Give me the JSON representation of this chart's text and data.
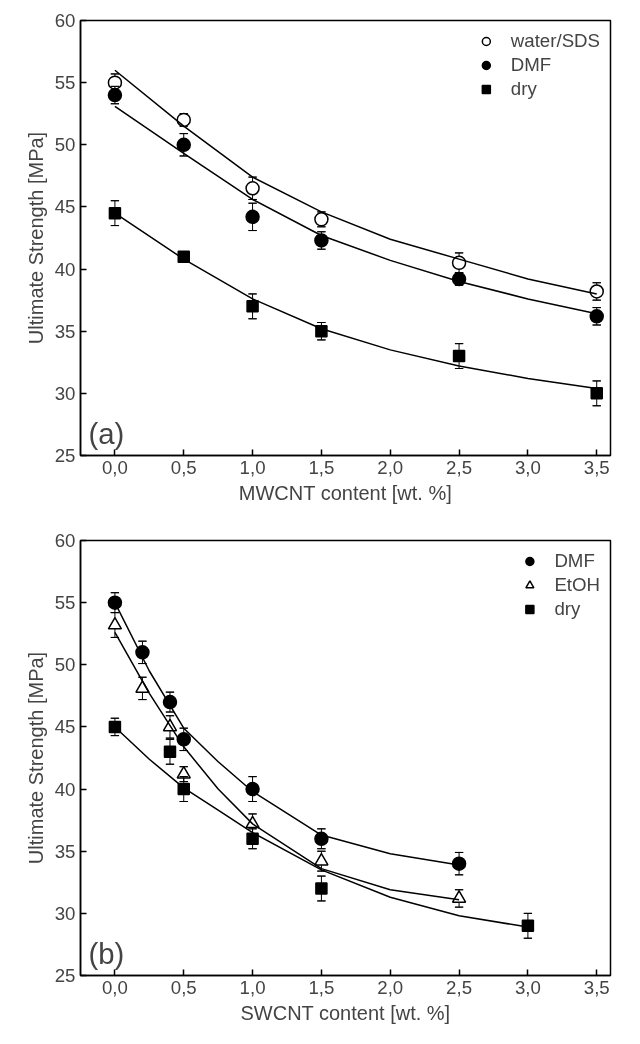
{
  "chart_data": [
    {
      "type": "scatter",
      "xlabel": "MWCNT content [wt. %]",
      "ylabel": "Ultimate Strength [MPa]",
      "xlim": [
        -0.25,
        3.6
      ],
      "ylim": [
        25,
        60
      ],
      "xticks": [
        {
          "value": 0,
          "label": "0,0"
        },
        {
          "value": 0.5,
          "label": "0,5"
        },
        {
          "value": 1,
          "label": "1,0"
        },
        {
          "value": 1.5,
          "label": "1,5"
        },
        {
          "value": 2,
          "label": "2,0"
        },
        {
          "value": 2.5,
          "label": "2,5"
        },
        {
          "value": 3,
          "label": "3,0"
        },
        {
          "value": 3.5,
          "label": "3,5"
        }
      ],
      "yticks": [
        25,
        30,
        35,
        40,
        45,
        50,
        55,
        60
      ],
      "legend": "top right",
      "grid": false,
      "annotations": [
        "(a)"
      ],
      "series": [
        {
          "name": "water/SDS",
          "color": "#ffffff",
          "marker": "circle",
          "x": [
            0,
            0.5,
            1,
            1.5,
            2.5,
            3.5
          ],
          "values": [
            55,
            52,
            46.5,
            44,
            40.5,
            38.2
          ],
          "errors": [
            0.7,
            0.5,
            0.9,
            0.6,
            0.8,
            0.7
          ]
        },
        {
          "name": "DMF",
          "color": "#000000",
          "marker": "circle",
          "x": [
            0,
            0.5,
            1,
            1.5,
            2.5,
            3.5
          ],
          "values": [
            54,
            50,
            44.2,
            42.3,
            39.2,
            36.2
          ],
          "errors": [
            0.7,
            0.9,
            1.1,
            0.7,
            0.5,
            0.7
          ]
        },
        {
          "name": "dry",
          "color": "#000000",
          "marker": "square",
          "x": [
            0,
            0.5,
            1,
            1.5,
            2.5,
            3.5
          ],
          "values": [
            44.5,
            41,
            37,
            35,
            33,
            30
          ],
          "errors": [
            1,
            0.3,
            1,
            0.7,
            1,
            1
          ]
        },
        {
          "type": "line",
          "color": "#000000",
          "x": [
            0,
            0.5,
            1,
            1.5,
            2,
            2.5,
            3,
            3.5
          ],
          "values": [
            56.0,
            51.5,
            47.4,
            44.6,
            42.4,
            40.8,
            39.2,
            38.0
          ]
        },
        {
          "type": "line",
          "color": "#000000",
          "x": [
            0,
            0.5,
            1,
            1.5,
            2,
            2.5,
            3,
            3.5
          ],
          "values": [
            53.1,
            49.3,
            45.6,
            42.7,
            40.7,
            39.0,
            37.6,
            36.4
          ]
        },
        {
          "type": "line",
          "color": "#000000",
          "x": [
            0,
            0.5,
            1,
            1.5,
            2,
            2.5,
            3,
            3.5
          ],
          "values": [
            44.5,
            40.8,
            37.6,
            35.2,
            33.5,
            32.2,
            31.2,
            30.4
          ]
        }
      ]
    },
    {
      "type": "scatter",
      "xlabel": "SWCNT content [wt. %]",
      "ylabel": "Ultimate Strength [MPa]",
      "xlim": [
        -0.25,
        3.6
      ],
      "ylim": [
        25,
        60
      ],
      "xticks": [
        {
          "value": 0,
          "label": "0,0"
        },
        {
          "value": 0.5,
          "label": "0,5"
        },
        {
          "value": 1,
          "label": "1,0"
        },
        {
          "value": 1.5,
          "label": "1,5"
        },
        {
          "value": 2,
          "label": "2,0"
        },
        {
          "value": 2.5,
          "label": "2,5"
        },
        {
          "value": 3,
          "label": "3,0"
        },
        {
          "value": 3.5,
          "label": "3,5"
        }
      ],
      "yticks": [
        25,
        30,
        35,
        40,
        45,
        50,
        55,
        60
      ],
      "legend": "top right",
      "grid": false,
      "annotations": [
        "(b)"
      ],
      "series": [
        {
          "name": "DMF",
          "color": "#000000",
          "marker": "circle",
          "x": [
            0,
            0.2,
            0.4,
            0.5,
            1,
            1.5,
            2.5
          ],
          "values": [
            55,
            51,
            47,
            44,
            40,
            36,
            34
          ],
          "errors": [
            0.8,
            0.9,
            0.8,
            0.9,
            1,
            0.8,
            0.9
          ]
        },
        {
          "name": "EtOH",
          "color": "#ffffff",
          "marker": "triangle",
          "x": [
            0,
            0.2,
            0.4,
            0.5,
            1,
            1.5,
            2.5
          ],
          "values": [
            53.2,
            48.1,
            45,
            41.2,
            37.2,
            34.2,
            31.2
          ],
          "errors": [
            1,
            0.9,
            0.9,
            0.6,
            0.8,
            0.8,
            0.7
          ]
        },
        {
          "name": "dry",
          "color": "#000000",
          "marker": "square",
          "x": [
            0,
            0.4,
            0.5,
            1,
            1.5,
            3
          ],
          "values": [
            45,
            43,
            40,
            36,
            32,
            29
          ],
          "errors": [
            0.7,
            1,
            1,
            0.8,
            1,
            1
          ]
        },
        {
          "type": "line",
          "color": "#000000",
          "x": [
            0,
            0.25,
            0.5,
            0.75,
            1,
            1.5,
            2,
            2.5
          ],
          "values": [
            55,
            49.5,
            44.9,
            42.2,
            39.8,
            36.3,
            34.8,
            33.9
          ]
        },
        {
          "type": "line",
          "color": "#000000",
          "x": [
            0,
            0.25,
            0.5,
            0.75,
            1,
            1.5,
            2,
            2.5
          ],
          "values": [
            52.6,
            47.7,
            43.4,
            40.0,
            37.2,
            33.6,
            31.9,
            31.1
          ]
        },
        {
          "type": "line",
          "color": "#000000",
          "x": [
            0,
            0.25,
            0.5,
            0.75,
            1,
            1.5,
            2,
            2.5,
            3
          ],
          "values": [
            45,
            42.4,
            40.1,
            38.3,
            36.5,
            33.5,
            31.3,
            29.8,
            28.9
          ]
        }
      ]
    }
  ]
}
